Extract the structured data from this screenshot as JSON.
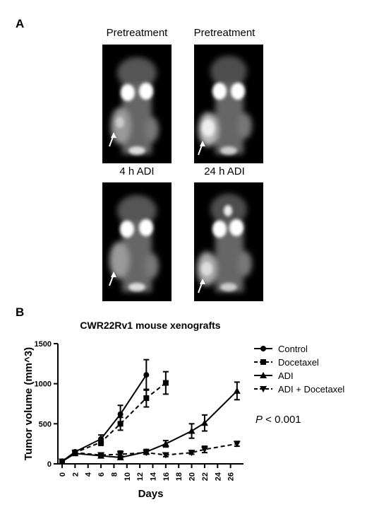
{
  "panel_a": {
    "label": "A",
    "scans": [
      {
        "caption": "Pretreatment"
      },
      {
        "caption": "Pretreatment"
      },
      {
        "caption": "4 h ADI"
      },
      {
        "caption": "24 h ADI"
      }
    ]
  },
  "panel_b": {
    "label": "B",
    "p_value_symbol": "P",
    "p_value_text": " < 0.001"
  },
  "chart_data": {
    "type": "line",
    "title": "CWR22Rv1 mouse xenografts",
    "xlabel": "Days",
    "ylabel": "Tumor volume (mm^3)",
    "xlim": [
      0,
      28
    ],
    "ylim": [
      0,
      1500
    ],
    "xticks": [
      0,
      2,
      4,
      6,
      8,
      10,
      12,
      14,
      16,
      18,
      20,
      22,
      24,
      26
    ],
    "yticks": [
      0,
      500,
      1000,
      1500
    ],
    "legend_position": "right",
    "grid": false,
    "series": [
      {
        "name": "Control",
        "marker": "circle",
        "dash": "solid",
        "x": [
          0,
          2,
          6,
          9,
          13
        ],
        "y": [
          30,
          150,
          310,
          620,
          1110
        ],
        "err": [
          10,
          20,
          50,
          110,
          190
        ]
      },
      {
        "name": "Docetaxel",
        "marker": "square",
        "dash": "dashed",
        "x": [
          0,
          2,
          6,
          9,
          13,
          16
        ],
        "y": [
          30,
          140,
          270,
          500,
          820,
          1010
        ],
        "err": [
          10,
          20,
          40,
          80,
          110,
          140
        ]
      },
      {
        "name": "ADI",
        "marker": "triangle-up",
        "dash": "solid",
        "x": [
          0,
          2,
          6,
          9,
          13,
          16,
          20,
          22,
          27
        ],
        "y": [
          30,
          130,
          100,
          80,
          150,
          250,
          410,
          510,
          910
        ],
        "err": [
          10,
          20,
          20,
          20,
          30,
          40,
          90,
          100,
          110
        ]
      },
      {
        "name": "ADI + Docetaxel",
        "marker": "triangle-down",
        "dash": "dashed",
        "x": [
          0,
          2,
          6,
          9,
          13,
          16,
          20,
          22,
          27
        ],
        "y": [
          30,
          140,
          110,
          120,
          140,
          110,
          140,
          180,
          250
        ],
        "err": [
          10,
          20,
          20,
          40,
          20,
          20,
          20,
          40,
          30
        ]
      }
    ]
  }
}
